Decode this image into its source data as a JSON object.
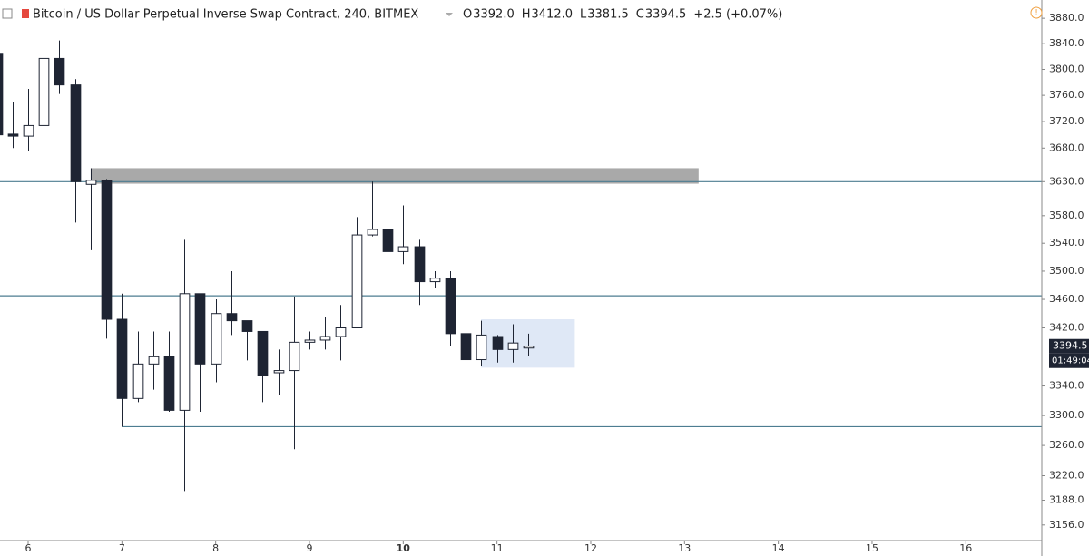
{
  "chart_data": {
    "type": "candlestick",
    "title": "Bitcoin / US Dollar Perpetual Inverse Swap Contract, 240, BITMEX",
    "ohlc_legend": [
      {
        "label": "O",
        "value": "3392.0"
      },
      {
        "label": "H",
        "value": "3412.0"
      },
      {
        "label": "L",
        "value": "3381.5"
      },
      {
        "label": "C",
        "value": "3394.5"
      }
    ],
    "change": "+2.5 (+0.07%)",
    "last_price": {
      "value": 3394.5,
      "label": "3394.5"
    },
    "countdown": "01:49:04",
    "x": [
      5.667,
      5.833,
      6,
      6.167,
      6.333,
      6.5,
      6.667,
      6.833,
      7,
      7.167,
      7.333,
      7.5,
      7.667,
      7.833,
      8,
      8.167,
      8.333,
      8.5,
      8.667,
      8.833,
      9,
      9.167,
      9.333,
      9.5,
      9.667,
      9.833,
      10,
      10.167,
      10.333,
      10.5,
      10.667,
      10.833,
      11,
      11.167,
      11.333
    ],
    "open": [
      3825,
      3701,
      3698,
      3714,
      3817,
      3776,
      3626,
      3632,
      3432,
      3323,
      3370,
      3380,
      3307,
      3468,
      3370,
      3440,
      3430,
      3415,
      3358,
      3361,
      3400,
      3403,
      3408,
      3420,
      3552,
      3560,
      3528,
      3535,
      3485,
      3490,
      3412,
      3376,
      3408,
      3390,
      3392
    ],
    "high": [
      3830,
      3750,
      3770,
      3845,
      3845,
      3785,
      3650,
      3634,
      3468,
      3415,
      3415,
      3415,
      3545,
      3468,
      3460,
      3500,
      3430,
      3415,
      3390,
      3464,
      3415,
      3435,
      3452,
      3578,
      3630,
      3582,
      3595,
      3545,
      3500,
      3500,
      3565,
      3430,
      3410,
      3425,
      3412
    ],
    "low": [
      3690,
      3680,
      3675,
      3625,
      3762,
      3570,
      3530,
      3405,
      3285,
      3318,
      3335,
      3305,
      3200,
      3305,
      3345,
      3410,
      3375,
      3318,
      3328,
      3255,
      3390,
      3390,
      3375,
      3420,
      3550,
      3510,
      3510,
      3452,
      3476,
      3395,
      3357,
      3368,
      3372,
      3372,
      3381.5
    ],
    "close": [
      3700,
      3698,
      3714,
      3817,
      3776,
      3630,
      3632,
      3432,
      3323,
      3370,
      3380,
      3307,
      3468,
      3370,
      3440,
      3430,
      3415,
      3354,
      3361,
      3400,
      3403,
      3408,
      3420,
      3552,
      3560,
      3528,
      3535,
      3485,
      3490,
      3412,
      3376,
      3410,
      3390,
      3399,
      3394.5
    ],
    "up_color": "#ffffff",
    "down_color": "#1e2433",
    "wick_color": "#1e2433",
    "levels": [
      {
        "value": 3630,
        "from": 5.7,
        "color": "#4d7d91"
      },
      {
        "value": 3465,
        "from": 5.7,
        "color": "#4d7d91"
      },
      {
        "value": 3285,
        "from": 7,
        "color": "#4d7d91"
      }
    ],
    "zones": [
      {
        "from": 6.667,
        "to": 13.15,
        "top": 3650,
        "bottom": 3627,
        "color": "#a9a9a9"
      },
      {
        "from": 10.83,
        "to": 11.83,
        "top": 3432,
        "bottom": 3365,
        "color": "#dfe8f6"
      }
    ],
    "xlim": [
      5.7,
      16.81
    ],
    "xticks": [
      6,
      7,
      8,
      9,
      10,
      11,
      12,
      13,
      14,
      15,
      16
    ],
    "ylim": [
      3136,
      3909
    ],
    "log_y": true,
    "yticks": [
      {
        "value": 3880,
        "label": "3880.0"
      },
      {
        "value": 3840,
        "label": "3840.0"
      },
      {
        "value": 3800,
        "label": "3800.0"
      },
      {
        "value": 3760,
        "label": "3760.0"
      },
      {
        "value": 3720,
        "label": "3720.0"
      },
      {
        "value": 3680,
        "label": "3680.0"
      },
      {
        "value": 3630,
        "label": "3630.0"
      },
      {
        "value": 3580,
        "label": "3580.0"
      },
      {
        "value": 3540,
        "label": "3540.0"
      },
      {
        "value": 3500,
        "label": "3500.0"
      },
      {
        "value": 3460,
        "label": "3460.0"
      },
      {
        "value": 3420,
        "label": "3420.0"
      },
      {
        "value": 3340,
        "label": "3340.0"
      },
      {
        "value": 3300,
        "label": "3300.0"
      },
      {
        "value": 3260,
        "label": "3260.0"
      },
      {
        "value": 3220,
        "label": "3220.0"
      },
      {
        "value": 3188,
        "label": "3188.0"
      },
      {
        "value": 3156,
        "label": "3156.0"
      }
    ]
  }
}
